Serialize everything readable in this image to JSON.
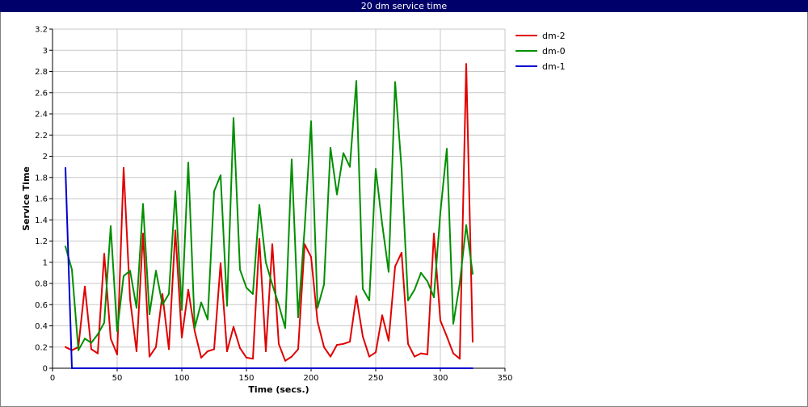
{
  "window": {
    "title": "20 dm service time"
  },
  "chart_data": {
    "type": "line",
    "title": "20 dm service time",
    "xlabel": "Time (secs.)",
    "ylabel": "Service Time",
    "xlim": [
      0,
      350
    ],
    "ylim": [
      0,
      3.2
    ],
    "xticks": [
      0,
      50,
      100,
      150,
      200,
      250,
      300,
      350
    ],
    "yticks": [
      0,
      0.2,
      0.4,
      0.6,
      0.8,
      1,
      1.2,
      1.4,
      1.6,
      1.8,
      2,
      2.2,
      2.4,
      2.6,
      2.8,
      3,
      3.2
    ],
    "grid": true,
    "legend": "top-right",
    "series": [
      {
        "name": "dm-2",
        "color": "#e00000",
        "x": [
          10,
          15,
          20,
          25,
          30,
          35,
          40,
          45,
          50,
          55,
          60,
          65,
          70,
          75,
          80,
          85,
          90,
          95,
          100,
          105,
          110,
          115,
          120,
          125,
          130,
          135,
          140,
          145,
          150,
          155,
          160,
          165,
          170,
          175,
          180,
          185,
          190,
          195,
          200,
          205,
          210,
          215,
          220,
          225,
          230,
          235,
          240,
          245,
          250,
          255,
          260,
          265,
          270,
          275,
          280,
          285,
          290,
          295,
          300,
          305,
          310,
          315,
          320,
          325
        ],
        "values": [
          0.2,
          0.17,
          0.2,
          0.77,
          0.18,
          0.14,
          1.08,
          0.28,
          0.13,
          1.89,
          0.65,
          0.16,
          1.27,
          0.11,
          0.2,
          0.7,
          0.18,
          1.3,
          0.29,
          0.74,
          0.35,
          0.1,
          0.16,
          0.18,
          0.99,
          0.16,
          0.39,
          0.19,
          0.1,
          0.09,
          1.22,
          0.16,
          1.17,
          0.23,
          0.07,
          0.11,
          0.18,
          1.17,
          1.05,
          0.44,
          0.2,
          0.11,
          0.22,
          0.23,
          0.25,
          0.68,
          0.3,
          0.11,
          0.15,
          0.5,
          0.26,
          0.96,
          1.09,
          0.23,
          0.11,
          0.14,
          0.13,
          1.27,
          0.45,
          0.3,
          0.14,
          0.09,
          2.87,
          0.25
        ]
      },
      {
        "name": "dm-0",
        "color": "#008f00",
        "x": [
          10,
          15,
          20,
          25,
          30,
          35,
          40,
          45,
          50,
          55,
          60,
          65,
          70,
          75,
          80,
          85,
          90,
          95,
          100,
          105,
          110,
          115,
          120,
          125,
          130,
          135,
          140,
          145,
          150,
          155,
          160,
          165,
          170,
          175,
          180,
          185,
          190,
          195,
          200,
          205,
          210,
          215,
          220,
          225,
          230,
          235,
          240,
          245,
          250,
          255,
          260,
          265,
          270,
          275,
          280,
          285,
          290,
          295,
          300,
          305,
          310,
          315,
          320,
          325
        ],
        "values": [
          1.15,
          0.93,
          0.17,
          0.28,
          0.24,
          0.32,
          0.43,
          1.34,
          0.35,
          0.87,
          0.92,
          0.57,
          1.55,
          0.51,
          0.92,
          0.6,
          0.7,
          1.67,
          0.55,
          1.94,
          0.38,
          0.62,
          0.46,
          1.67,
          1.82,
          0.59,
          2.36,
          0.93,
          0.76,
          0.7,
          1.54,
          1.0,
          0.79,
          0.6,
          0.38,
          1.97,
          0.48,
          1.32,
          2.33,
          0.57,
          0.79,
          2.08,
          1.64,
          2.03,
          1.9,
          2.71,
          0.75,
          0.64,
          1.88,
          1.36,
          0.91,
          2.7,
          1.88,
          0.64,
          0.74,
          0.9,
          0.82,
          0.67,
          1.47,
          2.07,
          0.42,
          0.8,
          1.35,
          0.89
        ]
      },
      {
        "name": "dm-1",
        "color": "#0000d0",
        "x": [
          10,
          15,
          20,
          25,
          50,
          100,
          150,
          200,
          250,
          300,
          325
        ],
        "values": [
          1.89,
          0,
          0,
          0,
          0,
          0,
          0,
          0,
          0,
          0,
          0
        ]
      }
    ]
  }
}
